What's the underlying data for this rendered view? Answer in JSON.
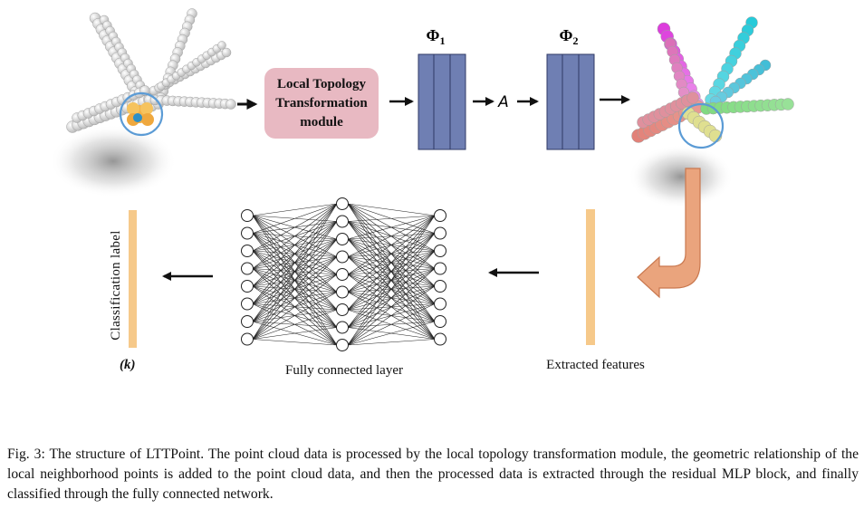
{
  "diagram": {
    "transformation_module": {
      "line1": "Local Topology",
      "line2": "Transformation",
      "line3": "module"
    },
    "phi1_label": "Φ",
    "phi1_sub": "1",
    "phi2_label": "Φ",
    "phi2_sub": "2",
    "operator_label": "A",
    "classification_label": "Classification label",
    "k_label": "(k)",
    "fc_label": "Fully connected layer",
    "features_label": "Extracted features",
    "colors": {
      "module_fill": "#e8b9c2",
      "block_fill": "#6f7fb3",
      "feature_bar": "#f6c98a",
      "curved_arrow": "#eaa47d",
      "highlight_circle": "#5b9bd5"
    }
  },
  "caption": "Fig. 3: The structure of LTTPoint. The point cloud data is processed by the local topology transformation module, the geometric relationship of the local neighborhood points is added to the point cloud data, and then the processed data is extracted through the residual MLP block, and finally classified through the fully connected network."
}
